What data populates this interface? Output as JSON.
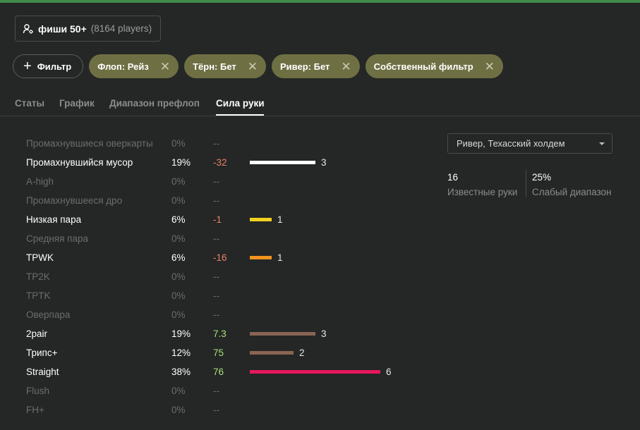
{
  "pool": {
    "name": "фиши 50+",
    "count": "(8164 players)",
    "icon": "user-gear-icon"
  },
  "filters": {
    "add_label": "Фильтр",
    "chips": [
      {
        "label": "Флоп: Рейз"
      },
      {
        "label": "Тёрн: Бет"
      },
      {
        "label": "Ривер: Бет"
      },
      {
        "label": "Собственный фильтр"
      }
    ]
  },
  "tabs": [
    {
      "label": "Статы",
      "active": false
    },
    {
      "label": "График",
      "active": false
    },
    {
      "label": "Диапазон префлоп",
      "active": false
    },
    {
      "label": "Сила руки",
      "active": true
    }
  ],
  "colors": {
    "positive": "#a9e07a",
    "negative": "#e8806a",
    "neutral": "#6a6d6b",
    "chip_bg": "#6e7044",
    "tab_active": "#ffffff"
  },
  "hand_strength": [
    {
      "label": "Промахнувшиеся оверкарты",
      "pct": "0%",
      "delta": "--",
      "count": null,
      "bar_fraction": 0,
      "bar_color": null,
      "active": false
    },
    {
      "label": "Промахнувшийся мусор",
      "pct": "19%",
      "delta": "-32",
      "count": "3",
      "bar_fraction": 0.5,
      "bar_color": "#ffffff",
      "active": true
    },
    {
      "label": "A-high",
      "pct": "0%",
      "delta": "--",
      "count": null,
      "bar_fraction": 0,
      "bar_color": null,
      "active": false
    },
    {
      "label": "Промахнувшееся дро",
      "pct": "0%",
      "delta": "--",
      "count": null,
      "bar_fraction": 0,
      "bar_color": null,
      "active": false
    },
    {
      "label": "Низкая пара",
      "pct": "6%",
      "delta": "-1",
      "count": "1",
      "bar_fraction": 0.1667,
      "bar_color": "#f2d21e",
      "active": true
    },
    {
      "label": "Средняя пара",
      "pct": "0%",
      "delta": "--",
      "count": null,
      "bar_fraction": 0,
      "bar_color": null,
      "active": false
    },
    {
      "label": "TPWK",
      "pct": "6%",
      "delta": "-16",
      "count": "1",
      "bar_fraction": 0.1667,
      "bar_color": "#f0941e",
      "active": true
    },
    {
      "label": "TP2K",
      "pct": "0%",
      "delta": "--",
      "count": null,
      "bar_fraction": 0,
      "bar_color": null,
      "active": false
    },
    {
      "label": "TPTK",
      "pct": "0%",
      "delta": "--",
      "count": null,
      "bar_fraction": 0,
      "bar_color": null,
      "active": false
    },
    {
      "label": "Оверпара",
      "pct": "0%",
      "delta": "--",
      "count": null,
      "bar_fraction": 0,
      "bar_color": null,
      "active": false
    },
    {
      "label": "2pair",
      "pct": "19%",
      "delta": "7.3",
      "count": "3",
      "bar_fraction": 0.5,
      "bar_color": "#8a6455",
      "active": true
    },
    {
      "label": "Трипс+",
      "pct": "12%",
      "delta": "75",
      "count": "2",
      "bar_fraction": 0.3333,
      "bar_color": "#8a6455",
      "active": true
    },
    {
      "label": "Straight",
      "pct": "38%",
      "delta": "76",
      "count": "6",
      "bar_fraction": 1.0,
      "bar_color": "#e8175d",
      "active": true
    },
    {
      "label": "Flush",
      "pct": "0%",
      "delta": "--",
      "count": null,
      "bar_fraction": 0,
      "bar_color": null,
      "active": false
    },
    {
      "label": "FH+",
      "pct": "0%",
      "delta": "--",
      "count": null,
      "bar_fraction": 0,
      "bar_color": null,
      "active": false
    }
  ],
  "street_select": {
    "value": "Ривер, Техасский холдем"
  },
  "summary": [
    {
      "value": "16",
      "label": "Известные руки"
    },
    {
      "value": "25%",
      "label": "Слабый диапазон"
    }
  ]
}
